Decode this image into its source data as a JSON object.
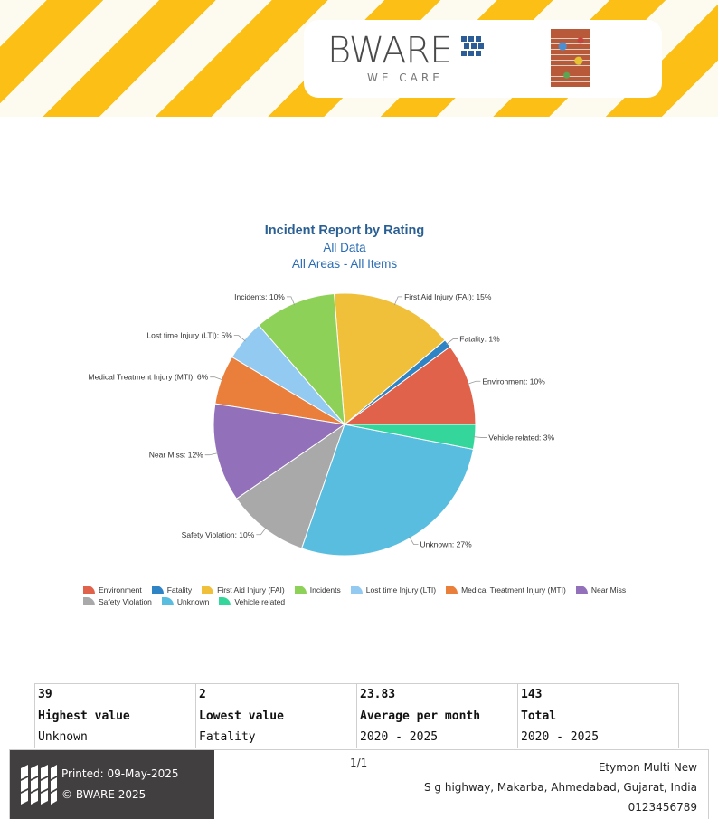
{
  "brand": {
    "name": "BWARE",
    "tagline": "WE CARE"
  },
  "chart_data": {
    "type": "pie",
    "title": "Incident Report by Rating",
    "subtitle": [
      "All Data",
      "All Areas - All Items"
    ],
    "slices": [
      {
        "name": "Environment",
        "percent": 10,
        "label": "Environment: 10%",
        "color": "#e0624b"
      },
      {
        "name": "Fatality",
        "percent": 1,
        "label": "Fatality: 1%",
        "color": "#2f84c5"
      },
      {
        "name": "First Aid Injury (FAI)",
        "percent": 15,
        "label": "First Aid Injury (FAI): 15%",
        "color": "#f0c03b"
      },
      {
        "name": "Incidents",
        "percent": 10,
        "label": "Incidents: 10%",
        "color": "#8ed158"
      },
      {
        "name": "Lost time Injury (LTI)",
        "percent": 5,
        "label": "Lost time Injury (LTI): 5%",
        "color": "#93caf2"
      },
      {
        "name": "Medical Treatment Injury (MTI)",
        "percent": 6,
        "label": "Medical Treatment Injury (MTI): 6%",
        "color": "#ea7e3b"
      },
      {
        "name": "Near Miss",
        "percent": 12,
        "label": "Near Miss: 12%",
        "color": "#9271ba"
      },
      {
        "name": "Safety Violation",
        "percent": 10,
        "label": "Safety Violation: 10%",
        "color": "#a9a9a9"
      },
      {
        "name": "Unknown",
        "percent": 27,
        "label": "Unknown: 27%",
        "color": "#58bddf"
      },
      {
        "name": "Vehicle related",
        "percent": 3,
        "label": "Vehicle related: 3%",
        "color": "#35d69b"
      }
    ],
    "legend_position": "bottom"
  },
  "stats": [
    {
      "value": "39",
      "label": "Highest value",
      "detail": "Unknown"
    },
    {
      "value": "2",
      "label": "Lowest value",
      "detail": "Fatality"
    },
    {
      "value": "23.83",
      "label": "Average per month",
      "detail": "2020 - 2025"
    },
    {
      "value": "143",
      "label": "Total",
      "detail": "2020 - 2025"
    }
  ],
  "footer": {
    "printed": "Printed: 09-May-2025",
    "copyright": "© BWARE 2025",
    "page": "1/1",
    "company": "Etymon Multi New",
    "address": "S g highway, Makarba, Ahmedabad, Gujarat, India",
    "phone": "0123456789"
  }
}
